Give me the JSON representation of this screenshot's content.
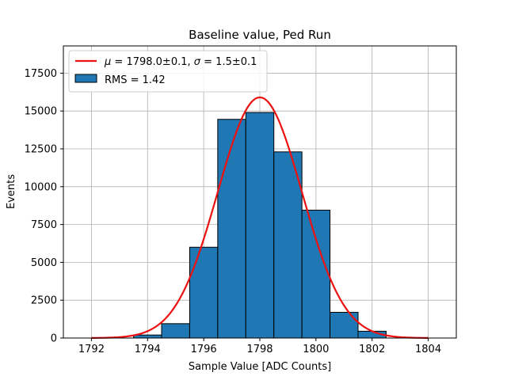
{
  "chart_data": {
    "type": "bar",
    "title": "Baseline value, Ped Run",
    "xlabel": "Sample Value [ADC Counts]",
    "ylabel": "Events",
    "xlim": [
      1791,
      1805
    ],
    "ylim": [
      0,
      19300
    ],
    "x_ticks": [
      1792,
      1794,
      1796,
      1798,
      1800,
      1802,
      1804
    ],
    "y_ticks": [
      0,
      2500,
      5000,
      7500,
      10000,
      12500,
      15000,
      17500
    ],
    "grid": true,
    "legend_position": "top-left",
    "bar_color": "#1f77b4",
    "fit_color": "#ee1111",
    "bins": [
      {
        "x0": 1793.5,
        "x1": 1794.5,
        "value": 200
      },
      {
        "x0": 1794.5,
        "x1": 1795.5,
        "value": 950
      },
      {
        "x0": 1795.5,
        "x1": 1796.5,
        "value": 6000
      },
      {
        "x0": 1796.5,
        "x1": 1797.5,
        "value": 14450
      },
      {
        "x0": 1797.5,
        "x1": 1798.5,
        "value": 14900
      },
      {
        "x0": 1798.5,
        "x1": 1799.5,
        "value": 12300
      },
      {
        "x0": 1799.5,
        "x1": 1800.5,
        "value": 8450
      },
      {
        "x0": 1800.5,
        "x1": 1801.5,
        "value": 1700
      },
      {
        "x0": 1801.5,
        "x1": 1802.5,
        "value": 450
      }
    ],
    "fit": {
      "mu": 1798.0,
      "sigma": 1.5,
      "amplitude": 15900,
      "x_range": [
        1792,
        1804
      ]
    },
    "legend": [
      {
        "kind": "line",
        "prefix": "μ",
        "text": " = 1798.0±0.1, ",
        "mid": "σ",
        "suffix": " = 1.5±0.1"
      },
      {
        "kind": "patch",
        "text": "RMS = 1.42"
      }
    ]
  }
}
